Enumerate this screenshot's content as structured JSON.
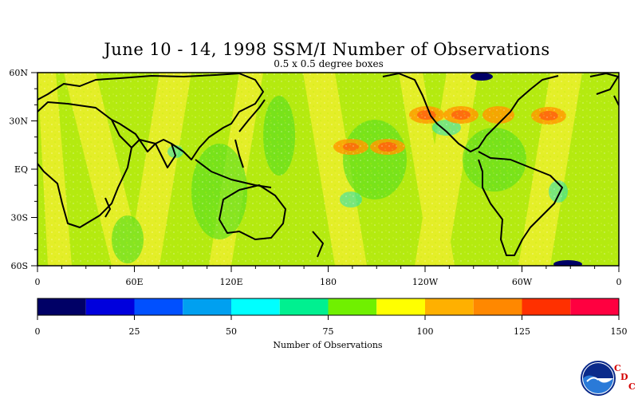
{
  "title": "June 10 - 14, 1998 SSM/I Number of Observations",
  "subtitle": "0.5 x 0.5 degree boxes",
  "map": {
    "lat_labels": [
      "60N",
      "30N",
      "EQ",
      "30S",
      "60S"
    ],
    "lat_values": [
      60,
      30,
      0,
      -30,
      -60
    ],
    "lon_labels": [
      "0",
      "60E",
      "120E",
      "180",
      "120W",
      "60W",
      "0"
    ],
    "lon_values": [
      0,
      60,
      120,
      180,
      240,
      300,
      360
    ],
    "lon_range": [
      0,
      360
    ],
    "lat_range": [
      -60,
      60
    ]
  },
  "colorbar": {
    "label": "Number of Observations",
    "tick_labels": [
      "0",
      "25",
      "50",
      "75",
      "100",
      "125",
      "150"
    ],
    "tick_values": [
      0,
      25,
      50,
      75,
      100,
      125,
      150
    ],
    "colors": [
      "#000066",
      "#0000dd",
      "#0050ff",
      "#00a0f0",
      "#00ffff",
      "#00f090",
      "#70f000",
      "#ffff00",
      "#ffb000",
      "#ff8800",
      "#ff3000",
      "#ff0040"
    ]
  },
  "logo": {
    "icon": "noaa-logo",
    "letters": [
      "C",
      "D",
      "C"
    ]
  }
}
